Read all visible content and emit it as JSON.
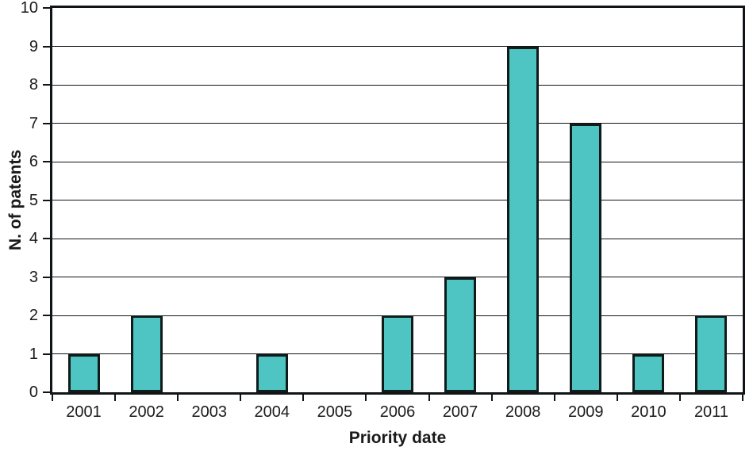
{
  "chart_data": {
    "type": "bar",
    "categories": [
      "2001",
      "2002",
      "2003",
      "2004",
      "2005",
      "2006",
      "2007",
      "2008",
      "2009",
      "2010",
      "2011"
    ],
    "values": [
      1,
      2,
      0,
      1,
      0,
      2,
      3,
      9,
      7,
      1,
      2
    ],
    "title": "",
    "xlabel": "Priority date",
    "ylabel": "N. of patents",
    "ylim": [
      0,
      10
    ],
    "ytick_step": 1,
    "grid": "horizontal",
    "legend": "none",
    "bar_color": "#4EC5C3",
    "bar_border_color": "#101C1A",
    "axis_color": "#111417"
  }
}
